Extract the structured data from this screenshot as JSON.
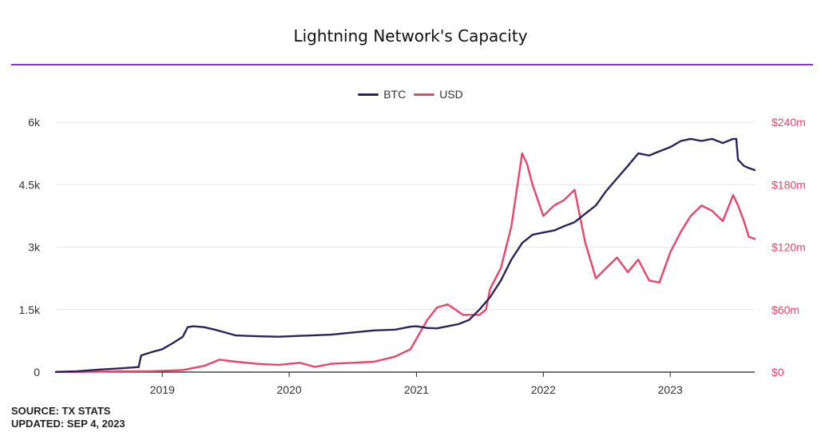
{
  "title": "Lightning Network's Capacity",
  "legend": [
    {
      "label": "BTC",
      "color": "#2a2457"
    },
    {
      "label": "USD",
      "color": "#e8456b"
    }
  ],
  "footer": {
    "source": "SOURCE: TX STATS",
    "updated": "UPDATED: SEP 4, 2023"
  },
  "chart_data": {
    "type": "line",
    "title": "Lightning Network's Capacity",
    "x_range": [
      "2018-03",
      "2023-09"
    ],
    "x_ticks": [
      "2019",
      "2020",
      "2021",
      "2022",
      "2023"
    ],
    "y_left": {
      "series": "BTC",
      "ylim": [
        0,
        6000
      ],
      "ticks": [
        0,
        1500,
        3000,
        4500,
        6000
      ],
      "tick_labels": [
        "0",
        "1.5k",
        "3k",
        "4.5k",
        "6k"
      ]
    },
    "y_right": {
      "series": "USD",
      "ylim": [
        0,
        240000000
      ],
      "ticks": [
        0,
        60000000,
        120000000,
        180000000,
        240000000
      ],
      "tick_labels": [
        "$0",
        "$60m",
        "$120m",
        "$180m",
        "$240m"
      ]
    },
    "grid": true,
    "legend_position": "top-center",
    "series": [
      {
        "name": "BTC",
        "axis": "left",
        "color": "#2a2457",
        "points": [
          [
            "2018-03-01",
            5
          ],
          [
            "2018-05-01",
            20
          ],
          [
            "2018-07-01",
            60
          ],
          [
            "2018-09-01",
            90
          ],
          [
            "2018-10-25",
            120
          ],
          [
            "2018-11-01",
            400
          ],
          [
            "2018-12-01",
            480
          ],
          [
            "2019-01-01",
            550
          ],
          [
            "2019-02-01",
            700
          ],
          [
            "2019-03-01",
            850
          ],
          [
            "2019-03-15",
            1080
          ],
          [
            "2019-04-01",
            1100
          ],
          [
            "2019-05-01",
            1080
          ],
          [
            "2019-06-01",
            1020
          ],
          [
            "2019-07-01",
            950
          ],
          [
            "2019-08-01",
            880
          ],
          [
            "2019-10-01",
            860
          ],
          [
            "2019-12-01",
            850
          ],
          [
            "2020-02-01",
            870
          ],
          [
            "2020-05-01",
            900
          ],
          [
            "2020-07-01",
            950
          ],
          [
            "2020-09-01",
            1000
          ],
          [
            "2020-11-01",
            1020
          ],
          [
            "2020-12-15",
            1090
          ],
          [
            "2021-01-01",
            1100
          ],
          [
            "2021-02-01",
            1060
          ],
          [
            "2021-03-01",
            1050
          ],
          [
            "2021-04-01",
            1100
          ],
          [
            "2021-05-01",
            1150
          ],
          [
            "2021-06-01",
            1250
          ],
          [
            "2021-07-01",
            1500
          ],
          [
            "2021-08-01",
            1800
          ],
          [
            "2021-09-01",
            2200
          ],
          [
            "2021-10-01",
            2700
          ],
          [
            "2021-11-01",
            3100
          ],
          [
            "2021-12-01",
            3300
          ],
          [
            "2022-01-01",
            3350
          ],
          [
            "2022-02-01",
            3400
          ],
          [
            "2022-03-01",
            3500
          ],
          [
            "2022-04-01",
            3600
          ],
          [
            "2022-05-01",
            3800
          ],
          [
            "2022-06-01",
            4000
          ],
          [
            "2022-07-01",
            4350
          ],
          [
            "2022-08-01",
            4650
          ],
          [
            "2022-09-01",
            4950
          ],
          [
            "2022-10-01",
            5250
          ],
          [
            "2022-11-01",
            5200
          ],
          [
            "2022-12-01",
            5300
          ],
          [
            "2023-01-01",
            5400
          ],
          [
            "2023-02-01",
            5550
          ],
          [
            "2023-03-01",
            5600
          ],
          [
            "2023-04-01",
            5550
          ],
          [
            "2023-05-01",
            5600
          ],
          [
            "2023-06-01",
            5500
          ],
          [
            "2023-07-01",
            5600
          ],
          [
            "2023-07-10",
            5600
          ],
          [
            "2023-07-15",
            5100
          ],
          [
            "2023-08-01",
            4950
          ],
          [
            "2023-08-15",
            4900
          ],
          [
            "2023-09-01",
            4850
          ]
        ]
      },
      {
        "name": "USD",
        "axis": "right",
        "color": "#e8456b",
        "points": [
          [
            "2018-03-01",
            100000
          ],
          [
            "2018-06-01",
            400000
          ],
          [
            "2018-09-01",
            800000
          ],
          [
            "2018-12-01",
            900000
          ],
          [
            "2019-01-01",
            1200000
          ],
          [
            "2019-03-01",
            2000000
          ],
          [
            "2019-05-01",
            6000000
          ],
          [
            "2019-06-15",
            12000000
          ],
          [
            "2019-08-01",
            10000000
          ],
          [
            "2019-10-01",
            8000000
          ],
          [
            "2019-12-01",
            7000000
          ],
          [
            "2020-02-01",
            9000000
          ],
          [
            "2020-03-15",
            5000000
          ],
          [
            "2020-05-01",
            8000000
          ],
          [
            "2020-07-01",
            9000000
          ],
          [
            "2020-09-01",
            10000000
          ],
          [
            "2020-11-01",
            15000000
          ],
          [
            "2020-12-15",
            22000000
          ],
          [
            "2021-01-01",
            32000000
          ],
          [
            "2021-02-01",
            50000000
          ],
          [
            "2021-03-01",
            62000000
          ],
          [
            "2021-04-01",
            65000000
          ],
          [
            "2021-05-15",
            55000000
          ],
          [
            "2021-07-01",
            55000000
          ],
          [
            "2021-07-20",
            60000000
          ],
          [
            "2021-08-01",
            80000000
          ],
          [
            "2021-09-01",
            100000000
          ],
          [
            "2021-10-01",
            140000000
          ],
          [
            "2021-11-01",
            210000000
          ],
          [
            "2021-11-15",
            200000000
          ],
          [
            "2021-12-01",
            180000000
          ],
          [
            "2022-01-01",
            150000000
          ],
          [
            "2022-02-01",
            160000000
          ],
          [
            "2022-03-01",
            165000000
          ],
          [
            "2022-04-01",
            175000000
          ],
          [
            "2022-05-01",
            125000000
          ],
          [
            "2022-06-01",
            90000000
          ],
          [
            "2022-07-01",
            100000000
          ],
          [
            "2022-08-01",
            110000000
          ],
          [
            "2022-09-01",
            96000000
          ],
          [
            "2022-10-01",
            108000000
          ],
          [
            "2022-11-01",
            88000000
          ],
          [
            "2022-12-01",
            86000000
          ],
          [
            "2023-01-01",
            115000000
          ],
          [
            "2023-02-01",
            135000000
          ],
          [
            "2023-03-01",
            150000000
          ],
          [
            "2023-04-01",
            160000000
          ],
          [
            "2023-05-01",
            155000000
          ],
          [
            "2023-06-01",
            145000000
          ],
          [
            "2023-07-01",
            170000000
          ],
          [
            "2023-07-15",
            160000000
          ],
          [
            "2023-08-01",
            145000000
          ],
          [
            "2023-08-15",
            130000000
          ],
          [
            "2023-09-01",
            128000000
          ]
        ]
      }
    ]
  }
}
